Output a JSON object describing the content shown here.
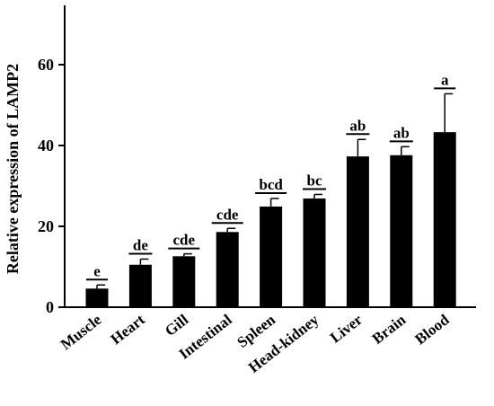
{
  "chart_data": {
    "type": "bar",
    "ylabel": "Relative expression of  LAMP2",
    "xlabel": "",
    "title": "",
    "ylim": [
      0,
      75
    ],
    "yticks": [
      0,
      20,
      40,
      60
    ],
    "grid": false,
    "categories": [
      "Muscle",
      "Heart",
      "Gill",
      "Intestinal",
      "Spleen",
      "Head-kidney",
      "Liver",
      "Brain",
      "Blood"
    ],
    "values": [
      4.6,
      10.5,
      12.6,
      18.6,
      24.9,
      26.9,
      37.3,
      37.6,
      43.3
    ],
    "errors": [
      0.9,
      1.4,
      0.6,
      0.9,
      2.0,
      1.0,
      4.2,
      2.1,
      9.5
    ],
    "significance": [
      "e",
      "de",
      "cde",
      "cde",
      "bcd",
      "bc",
      "ab",
      "ab",
      "a"
    ],
    "bar_color": "#000000"
  }
}
